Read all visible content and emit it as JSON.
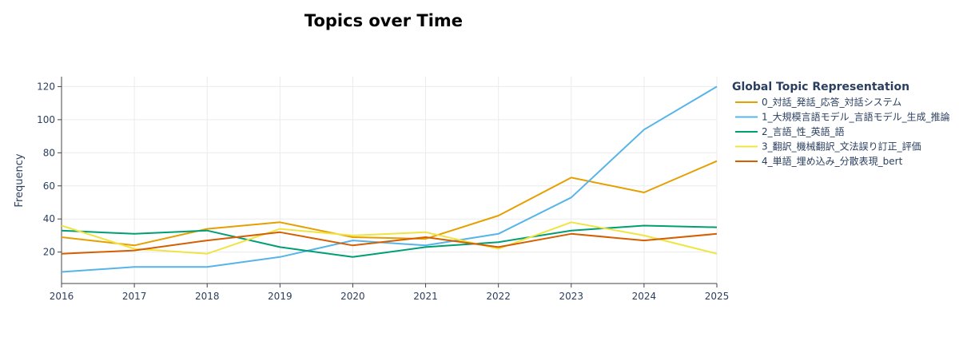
{
  "chart_data": {
    "type": "line",
    "title": "Topics over Time",
    "xlabel": "",
    "ylabel": "Frequency",
    "x": [
      2016,
      2017,
      2018,
      2019,
      2020,
      2021,
      2022,
      2023,
      2024,
      2025
    ],
    "xlim": [
      2016,
      2025
    ],
    "ylim": [
      1,
      126
    ],
    "yticks": [
      20,
      40,
      60,
      80,
      100,
      120
    ],
    "grid": true,
    "legend": {
      "title": "Global Topic Representation",
      "placement": "right"
    },
    "series": [
      {
        "name": "0_対話_発話_応答_対話システム",
        "color": "#E69F00",
        "values": [
          29,
          24,
          34,
          38,
          29,
          28,
          42,
          65,
          56,
          75
        ]
      },
      {
        "name": "1_大規模言語モデル_言語モデル_生成_推論",
        "color": "#56B4E9",
        "values": [
          8,
          11,
          11,
          17,
          27,
          24,
          31,
          53,
          94,
          120
        ]
      },
      {
        "name": "2_言語_性_英語_語",
        "color": "#009E73",
        "values": [
          33,
          31,
          33,
          23,
          17,
          23,
          26,
          33,
          36,
          35
        ]
      },
      {
        "name": "3_翻訳_機械翻訳_文法誤り訂正_評価",
        "color": "#F0E442",
        "values": [
          36,
          22,
          19,
          34,
          30,
          32,
          22,
          38,
          30,
          19
        ]
      },
      {
        "name": "4_単語_埋め込み_分散表現_bert",
        "color": "#D55E00",
        "values": [
          19,
          21,
          27,
          32,
          24,
          29,
          23,
          31,
          27,
          31
        ]
      }
    ]
  }
}
